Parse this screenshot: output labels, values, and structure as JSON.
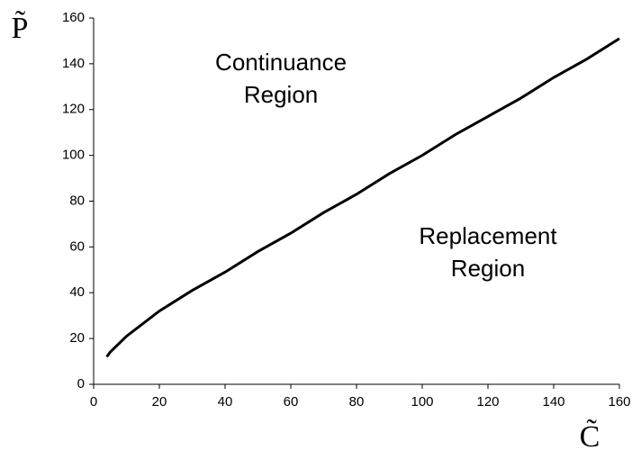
{
  "chart_data": {
    "type": "line",
    "x_label": "C̃",
    "y_label": "P̃",
    "x": [
      4,
      5,
      10,
      20,
      30,
      40,
      50,
      60,
      70,
      80,
      90,
      100,
      110,
      120,
      130,
      140,
      150,
      160
    ],
    "series": [
      {
        "color": "#000000",
        "values": [
          12,
          14,
          21,
          32,
          41,
          49,
          58,
          66,
          75,
          83,
          92,
          100,
          109,
          117,
          125,
          134,
          142,
          151
        ]
      }
    ],
    "xlim": [
      0,
      160
    ],
    "ylim": [
      0,
      160
    ],
    "xticks": [
      0,
      20,
      40,
      60,
      80,
      100,
      120,
      140,
      160
    ],
    "yticks": [
      0,
      20,
      40,
      60,
      80,
      100,
      120,
      140,
      160
    ],
    "grid": false,
    "annotations": [
      {
        "lines": [
          "Continuance",
          "Region"
        ],
        "x": 57,
        "y": 140
      },
      {
        "lines": [
          "Replacement",
          "Region"
        ],
        "x": 120,
        "y": 64
      }
    ]
  }
}
